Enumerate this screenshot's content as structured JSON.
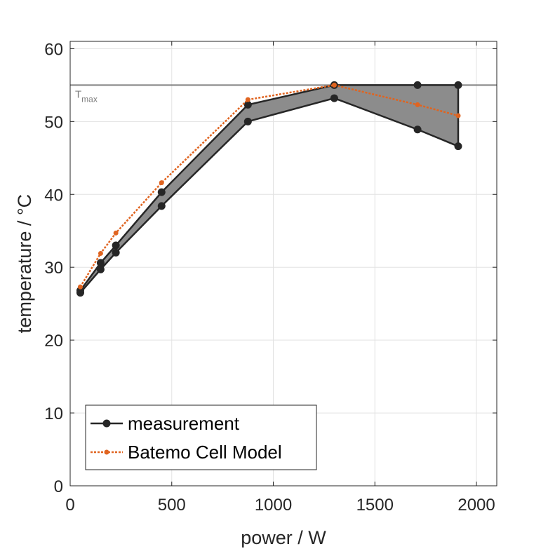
{
  "chart_data": {
    "type": "line",
    "title": "",
    "xlabel": "power / W",
    "ylabel": "temperature / °C",
    "xlim": [
      0,
      2100
    ],
    "ylim": [
      0,
      61
    ],
    "xticks": [
      0,
      500,
      1000,
      1500,
      2000
    ],
    "yticks": [
      0,
      10,
      20,
      30,
      40,
      50,
      60
    ],
    "grid": true,
    "legend_position": "bottom-left",
    "reference_line": {
      "label_main": "T",
      "label_sub": "max",
      "y": 55,
      "color": "#808080"
    },
    "shaded_band": {
      "x": [
        50,
        150,
        225,
        450,
        875,
        1300,
        1710,
        1910
      ],
      "upper": [
        26.8,
        30.6,
        33.0,
        40.3,
        52.3,
        55.0,
        55.0,
        55.0
      ],
      "lower": [
        26.5,
        29.7,
        32.0,
        38.4,
        50.0,
        53.2,
        48.9,
        46.6
      ],
      "color": "#8c8c8c"
    },
    "series": [
      {
        "name": "measurement",
        "color": "#262626",
        "style": "solid-circle",
        "x": [
          50,
          150,
          225,
          450,
          875,
          1300,
          1710,
          1910
        ],
        "upper": [
          26.8,
          30.6,
          33.0,
          40.3,
          52.3,
          55.0,
          55.0,
          55.0
        ],
        "lower": [
          26.5,
          29.7,
          32.0,
          38.4,
          50.0,
          53.2,
          48.9,
          46.6
        ]
      },
      {
        "name": "Batemo Cell Model",
        "color": "#e06420",
        "style": "dotted-dot",
        "x": [
          50,
          150,
          225,
          450,
          875,
          1300,
          1710,
          1910
        ],
        "y": [
          27.3,
          31.9,
          34.7,
          41.6,
          53.0,
          55.0,
          52.3,
          50.8
        ]
      }
    ]
  }
}
